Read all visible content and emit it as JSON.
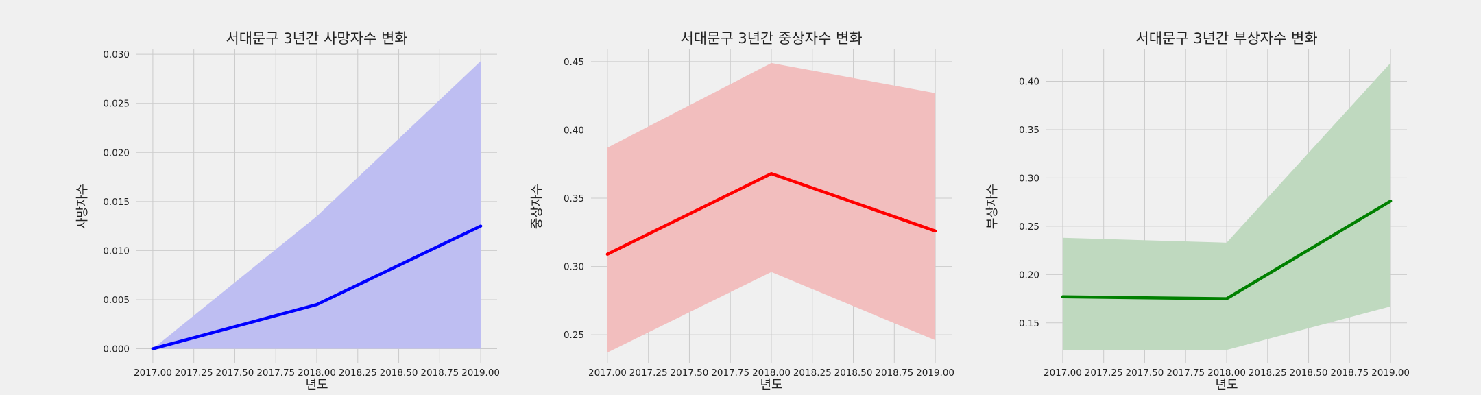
{
  "colors": {
    "background": "#f0f0f0",
    "grid": "#cbcbcb"
  },
  "chart_data": [
    {
      "type": "line",
      "title": "서대문구 3년간 사망자수 변화",
      "xlabel": "년도",
      "ylabel": "사망자수",
      "x": [
        2017.0,
        2018.0,
        2019.0
      ],
      "series": [
        {
          "values": [
            0.0,
            0.0045,
            0.0125
          ],
          "ci_lower": [
            0.0,
            0.0,
            0.0
          ],
          "ci_upper": [
            0.0,
            0.0135,
            0.0293
          ],
          "color": "#0000ff",
          "band_color": "#bebef2"
        }
      ],
      "xlim": [
        2016.9,
        2019.1
      ],
      "ylim": [
        -0.0015,
        0.0305
      ],
      "xticks": [
        2017.0,
        2017.25,
        2017.5,
        2017.75,
        2018.0,
        2018.25,
        2018.5,
        2018.75,
        2019.0
      ],
      "xtick_labels": [
        "2017.00",
        "2017.25",
        "2017.50",
        "2017.75",
        "2018.00",
        "2018.25",
        "2018.50",
        "2018.75",
        "2019.00"
      ],
      "yticks": [
        0.0,
        0.005,
        0.01,
        0.015,
        0.02,
        0.025,
        0.03
      ],
      "ytick_labels": [
        "0.000",
        "0.005",
        "0.010",
        "0.015",
        "0.020",
        "0.025",
        "0.030"
      ],
      "grid": true
    },
    {
      "type": "line",
      "title": "서대문구 3년간 중상자수 변화",
      "xlabel": "년도",
      "ylabel": "중상자수",
      "x": [
        2017.0,
        2018.0,
        2019.0
      ],
      "series": [
        {
          "values": [
            0.309,
            0.368,
            0.326
          ],
          "ci_lower": [
            0.237,
            0.296,
            0.246
          ],
          "ci_upper": [
            0.387,
            0.449,
            0.427
          ],
          "color": "#ff0000",
          "band_color": "#f2bebe"
        }
      ],
      "xlim": [
        2016.9,
        2019.1
      ],
      "ylim": [
        0.229,
        0.459
      ],
      "xticks": [
        2017.0,
        2017.25,
        2017.5,
        2017.75,
        2018.0,
        2018.25,
        2018.5,
        2018.75,
        2019.0
      ],
      "xtick_labels": [
        "2017.00",
        "2017.25",
        "2017.50",
        "2017.75",
        "2018.00",
        "2018.25",
        "2018.50",
        "2018.75",
        "2019.00"
      ],
      "yticks": [
        0.25,
        0.3,
        0.35,
        0.4,
        0.45
      ],
      "ytick_labels": [
        "0.25",
        "0.30",
        "0.35",
        "0.40",
        "0.45"
      ],
      "grid": true
    },
    {
      "type": "line",
      "title": "서대문구 3년간 부상자수 변화",
      "xlabel": "년도",
      "ylabel": "부상자수",
      "x": [
        2017.0,
        2018.0,
        2019.0
      ],
      "series": [
        {
          "values": [
            0.177,
            0.175,
            0.276
          ],
          "ci_lower": [
            0.122,
            0.122,
            0.167
          ],
          "ci_upper": [
            0.238,
            0.233,
            0.419
          ],
          "color": "#008000",
          "band_color": "#bfd9bf"
        }
      ],
      "xlim": [
        2016.9,
        2019.1
      ],
      "ylim": [
        0.108,
        0.433
      ],
      "xticks": [
        2017.0,
        2017.25,
        2017.5,
        2017.75,
        2018.0,
        2018.25,
        2018.5,
        2018.75,
        2019.0
      ],
      "xtick_labels": [
        "2017.00",
        "2017.25",
        "2017.50",
        "2017.75",
        "2018.00",
        "2018.25",
        "2018.50",
        "2018.75",
        "2019.00"
      ],
      "yticks": [
        0.15,
        0.2,
        0.25,
        0.3,
        0.35,
        0.4
      ],
      "ytick_labels": [
        "0.15",
        "0.20",
        "0.25",
        "0.30",
        "0.35",
        "0.40"
      ],
      "grid": true
    }
  ]
}
